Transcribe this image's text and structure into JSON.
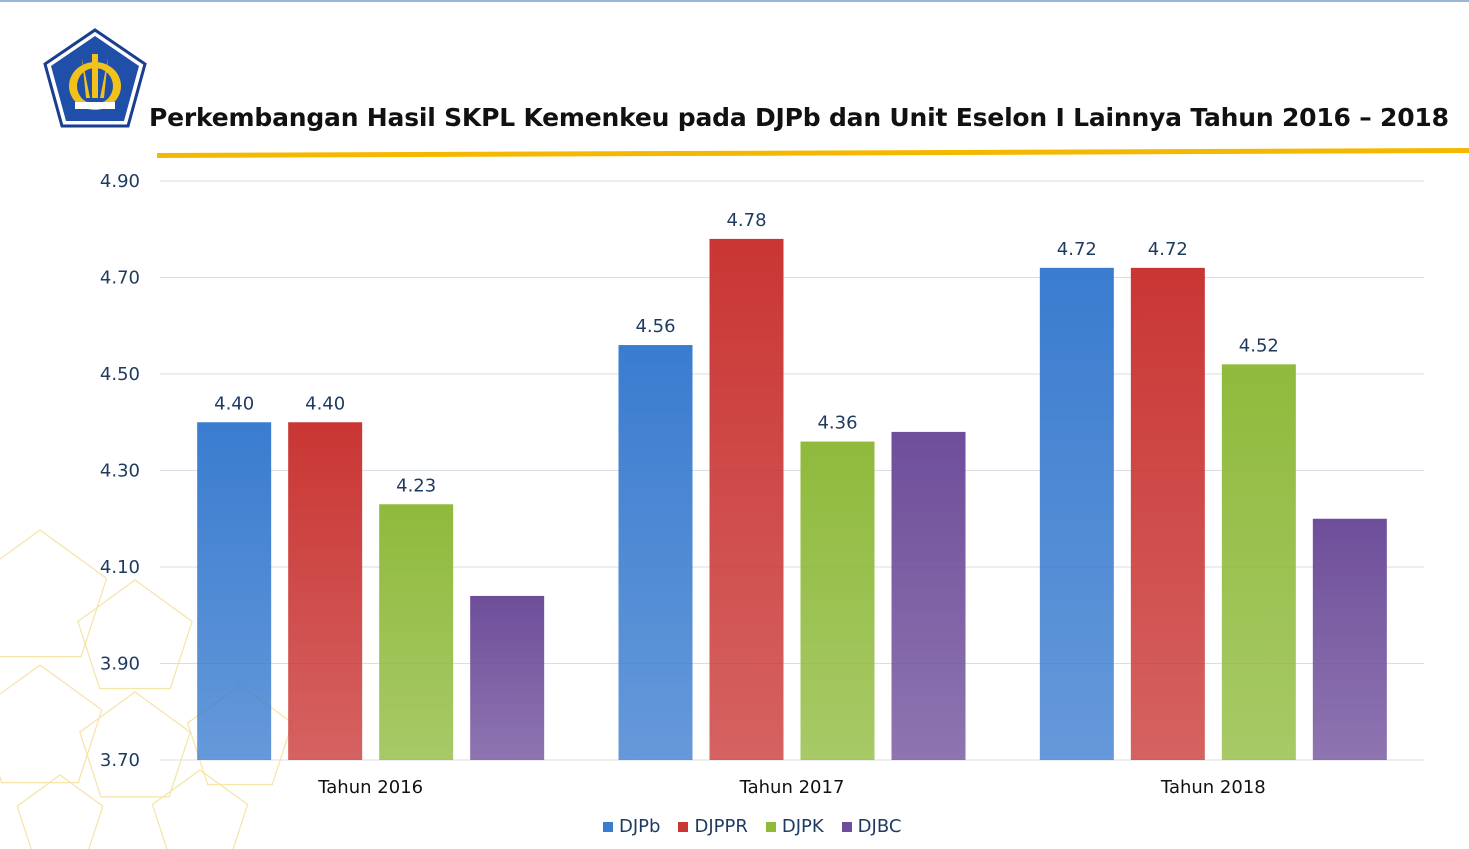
{
  "title": "Perkembangan Hasil SKPL Kemenkeu pada DJPb dan Unit Eselon I Lainnya Tahun 2016 – 2018",
  "colors": {
    "accent_line": "#f5b800",
    "gridline": "#d9dee6",
    "axis_text": "#1f3a5f",
    "series": [
      "#3a7ccf",
      "#c93634",
      "#8fba3c",
      "#6e4e9a"
    ]
  },
  "chart_data": {
    "type": "bar",
    "categories": [
      "Tahun 2016",
      "Tahun 2017",
      "Tahun 2018"
    ],
    "series": [
      {
        "name": "DJPb",
        "values": [
          4.4,
          4.56,
          4.72
        ],
        "labels": [
          "4.40",
          "4.56",
          "4.72"
        ]
      },
      {
        "name": "DJPPR",
        "values": [
          4.4,
          4.78,
          4.72
        ],
        "labels": [
          "4.40",
          "4.78",
          "4.72"
        ]
      },
      {
        "name": "DJPK",
        "values": [
          4.23,
          4.36,
          4.52
        ],
        "labels": [
          "4.23",
          "4.36",
          "4.52"
        ]
      },
      {
        "name": "DJBC",
        "values": [
          4.04,
          4.38,
          4.2
        ],
        "labels": [
          "",
          "",
          ""
        ]
      }
    ],
    "yticks": [
      "3.70",
      "3.90",
      "4.10",
      "4.30",
      "4.50",
      "4.70",
      "4.90"
    ],
    "ylim": [
      3.7,
      4.9
    ],
    "grid": true,
    "legend": "bottom"
  }
}
